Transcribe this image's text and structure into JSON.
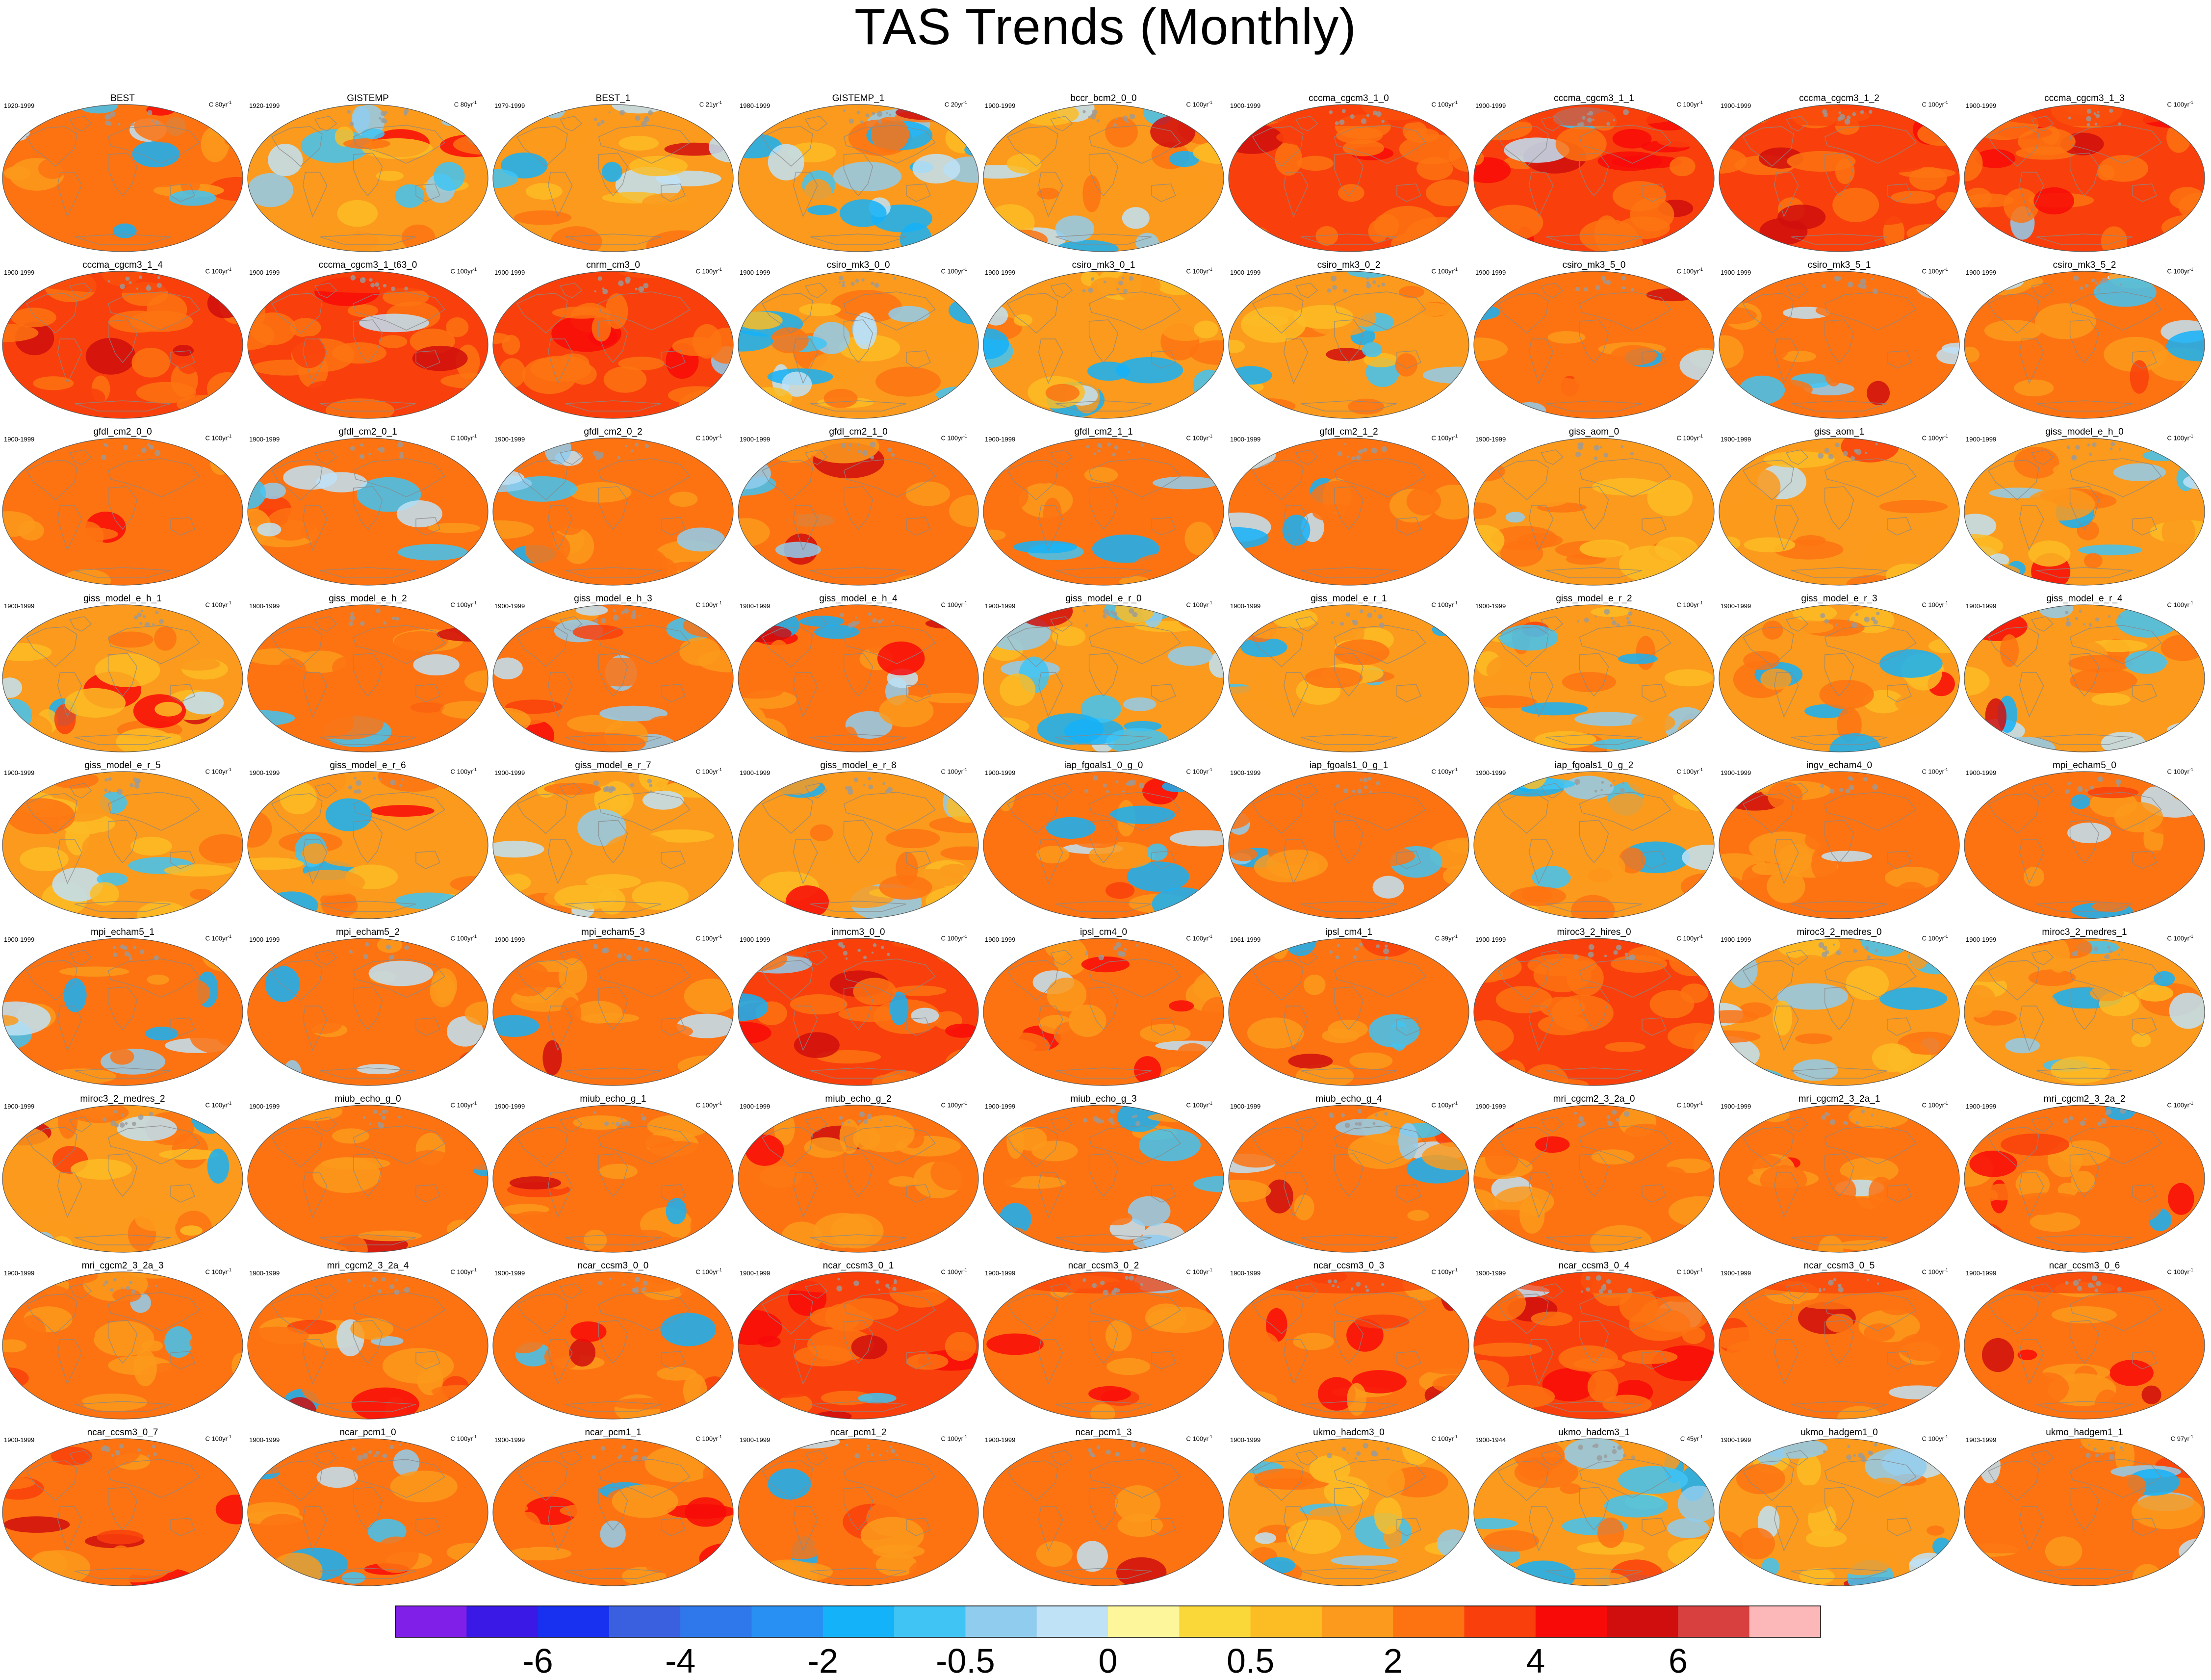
{
  "title": "TAS Trends (Monthly)",
  "colors": {
    "bins": [
      "#7f1fe8",
      "#3a18e6",
      "#1830f0",
      "#3a60e0",
      "#2f78ec",
      "#2890f2",
      "#14b2f8",
      "#40c4f4",
      "#90ccee",
      "#bfe2f6",
      "#fef69a",
      "#fbd83a",
      "#fcbc24",
      "#fb9a1c",
      "#fd7312",
      "#f9400c",
      "#f80a08",
      "#d00e0e",
      "#d84040",
      "#fcb8b8"
    ],
    "land": "#c8a042",
    "grid_land_line": "#888888"
  },
  "chart_data": {
    "type": "heatmap",
    "title": "TAS Trends (Monthly)",
    "colorbar": {
      "tick_labels": [
        "-6",
        "-4",
        "-2",
        "-0.5",
        "0",
        "0.5",
        "2",
        "4",
        "6"
      ],
      "tick_bin_boundaries": [
        2,
        4,
        6,
        8,
        10,
        12,
        14,
        16,
        18
      ],
      "n_bins": 20
    },
    "panels": [
      {
        "name": "BEST",
        "period": "1920-1999",
        "units": "C 80yr",
        "cold": 0.3,
        "warm": 0.05,
        "base": 0.5
      },
      {
        "name": "GISTEMP",
        "period": "1920-1999",
        "units": "C 80yr",
        "cold": 0.3,
        "warm": 0.05,
        "base": 0.48
      },
      {
        "name": "BEST_1",
        "period": "1979-1999",
        "units": "C 21yr",
        "cold": 0.45,
        "warm": 0.1,
        "base": 0.42
      },
      {
        "name": "GISTEMP_1",
        "period": "1980-1999",
        "units": "C 20yr",
        "cold": 0.55,
        "warm": 0.05,
        "base": 0.38
      },
      {
        "name": "bccr_bcm2_0_0",
        "period": "1900-1999",
        "units": "C 100yr",
        "cold": 0.35,
        "warm": 0.05,
        "base": 0.45
      },
      {
        "name": "cccma_cgcm3_1_0",
        "period": "1900-1999",
        "units": "C 100yr",
        "cold": 0.05,
        "warm": 0.4,
        "base": 0.72
      },
      {
        "name": "cccma_cgcm3_1_1",
        "period": "1900-1999",
        "units": "C 100yr",
        "cold": 0.05,
        "warm": 0.4,
        "base": 0.72
      },
      {
        "name": "cccma_cgcm3_1_2",
        "period": "1900-1999",
        "units": "C 100yr",
        "cold": 0.05,
        "warm": 0.3,
        "base": 0.7
      },
      {
        "name": "cccma_cgcm3_1_3",
        "period": "1900-1999",
        "units": "C 100yr",
        "cold": 0.05,
        "warm": 0.3,
        "base": 0.7
      },
      {
        "name": "cccma_cgcm3_1_4",
        "period": "1900-1999",
        "units": "C 100yr",
        "cold": 0.02,
        "warm": 0.3,
        "base": 0.7
      },
      {
        "name": "cccma_cgcm3_1_t63_0",
        "period": "1900-1999",
        "units": "C 100yr",
        "cold": 0.02,
        "warm": 0.3,
        "base": 0.7
      },
      {
        "name": "cnrm_cm3_0",
        "period": "1900-1999",
        "units": "C 100yr",
        "cold": 0.02,
        "warm": 0.3,
        "base": 0.7
      },
      {
        "name": "csiro_mk3_0_0",
        "period": "1900-1999",
        "units": "C 100yr",
        "cold": 0.4,
        "warm": 0.02,
        "base": 0.4
      },
      {
        "name": "csiro_mk3_0_1",
        "period": "1900-1999",
        "units": "C 100yr",
        "cold": 0.35,
        "warm": 0.02,
        "base": 0.42
      },
      {
        "name": "csiro_mk3_0_2",
        "period": "1900-1999",
        "units": "C 100yr",
        "cold": 0.25,
        "warm": 0.02,
        "base": 0.45
      },
      {
        "name": "csiro_mk3_5_0",
        "period": "1900-1999",
        "units": "C 100yr",
        "cold": 0.2,
        "warm": 0.05,
        "base": 0.55
      },
      {
        "name": "csiro_mk3_5_1",
        "period": "1900-1999",
        "units": "C 100yr",
        "cold": 0.2,
        "warm": 0.05,
        "base": 0.55
      },
      {
        "name": "csiro_mk3_5_2",
        "period": "1900-1999",
        "units": "C 100yr",
        "cold": 0.2,
        "warm": 0.05,
        "base": 0.55
      },
      {
        "name": "gfdl_cm2_0_0",
        "period": "1900-1999",
        "units": "C 100yr",
        "cold": 0.05,
        "warm": 0.05,
        "base": 0.55
      },
      {
        "name": "gfdl_cm2_0_1",
        "period": "1900-1999",
        "units": "C 100yr",
        "cold": 0.3,
        "warm": 0.05,
        "base": 0.5
      },
      {
        "name": "gfdl_cm2_0_2",
        "period": "1900-1999",
        "units": "C 100yr",
        "cold": 0.15,
        "warm": 0.05,
        "base": 0.52
      },
      {
        "name": "gfdl_cm2_1_0",
        "period": "1900-1999",
        "units": "C 100yr",
        "cold": 0.1,
        "warm": 0.05,
        "base": 0.55
      },
      {
        "name": "gfdl_cm2_1_1",
        "period": "1900-1999",
        "units": "C 100yr",
        "cold": 0.15,
        "warm": 0.05,
        "base": 0.52
      },
      {
        "name": "gfdl_cm2_1_2",
        "period": "1900-1999",
        "units": "C 100yr",
        "cold": 0.2,
        "warm": 0.05,
        "base": 0.52
      },
      {
        "name": "giss_aom_0",
        "period": "1900-1999",
        "units": "C 100yr",
        "cold": 0.05,
        "warm": 0.05,
        "base": 0.48
      },
      {
        "name": "giss_aom_1",
        "period": "1900-1999",
        "units": "C 100yr",
        "cold": 0.05,
        "warm": 0.05,
        "base": 0.48
      },
      {
        "name": "giss_model_e_h_0",
        "period": "1900-1999",
        "units": "C 100yr",
        "cold": 0.25,
        "warm": 0.1,
        "base": 0.48
      },
      {
        "name": "giss_model_e_h_1",
        "period": "1900-1999",
        "units": "C 100yr",
        "cold": 0.3,
        "warm": 0.1,
        "base": 0.48
      },
      {
        "name": "giss_model_e_h_2",
        "period": "1900-1999",
        "units": "C 100yr",
        "cold": 0.3,
        "warm": 0.1,
        "base": 0.5
      },
      {
        "name": "giss_model_e_h_3",
        "period": "1900-1999",
        "units": "C 100yr",
        "cold": 0.25,
        "warm": 0.1,
        "base": 0.52
      },
      {
        "name": "giss_model_e_h_4",
        "period": "1900-1999",
        "units": "C 100yr",
        "cold": 0.25,
        "warm": 0.15,
        "base": 0.52
      },
      {
        "name": "giss_model_e_r_0",
        "period": "1900-1999",
        "units": "C 100yr",
        "cold": 0.25,
        "warm": 0.05,
        "base": 0.48
      },
      {
        "name": "giss_model_e_r_1",
        "period": "1900-1999",
        "units": "C 100yr",
        "cold": 0.1,
        "warm": 0.05,
        "base": 0.48
      },
      {
        "name": "giss_model_e_r_2",
        "period": "1900-1999",
        "units": "C 100yr",
        "cold": 0.3,
        "warm": 0.05,
        "base": 0.48
      },
      {
        "name": "giss_model_e_r_3",
        "period": "1900-1999",
        "units": "C 100yr",
        "cold": 0.2,
        "warm": 0.05,
        "base": 0.48
      },
      {
        "name": "giss_model_e_r_4",
        "period": "1900-1999",
        "units": "C 100yr",
        "cold": 0.2,
        "warm": 0.05,
        "base": 0.48
      },
      {
        "name": "giss_model_e_r_5",
        "period": "1900-1999",
        "units": "C 100yr",
        "cold": 0.3,
        "warm": 0.05,
        "base": 0.48
      },
      {
        "name": "giss_model_e_r_6",
        "period": "1900-1999",
        "units": "C 100yr",
        "cold": 0.15,
        "warm": 0.05,
        "base": 0.48
      },
      {
        "name": "giss_model_e_r_7",
        "period": "1900-1999",
        "units": "C 100yr",
        "cold": 0.2,
        "warm": 0.05,
        "base": 0.48
      },
      {
        "name": "giss_model_e_r_8",
        "period": "1900-1999",
        "units": "C 100yr",
        "cold": 0.25,
        "warm": 0.05,
        "base": 0.48
      },
      {
        "name": "iap_fgoals1_0_g_0",
        "period": "1900-1999",
        "units": "C 100yr",
        "cold": 0.35,
        "warm": 0.05,
        "base": 0.5
      },
      {
        "name": "iap_fgoals1_0_g_1",
        "period": "1900-1999",
        "units": "C 100yr",
        "cold": 0.2,
        "warm": 0.05,
        "base": 0.52
      },
      {
        "name": "iap_fgoals1_0_g_2",
        "period": "1900-1999",
        "units": "C 100yr",
        "cold": 0.45,
        "warm": 0.05,
        "base": 0.45
      },
      {
        "name": "ingv_echam4_0",
        "period": "1900-1999",
        "units": "C 100yr",
        "cold": 0.05,
        "warm": 0.1,
        "base": 0.6
      },
      {
        "name": "mpi_echam5_0",
        "period": "1900-1999",
        "units": "C 100yr",
        "cold": 0.2,
        "warm": 0.05,
        "base": 0.52
      },
      {
        "name": "mpi_echam5_1",
        "period": "1900-1999",
        "units": "C 100yr",
        "cold": 0.25,
        "warm": 0.05,
        "base": 0.5
      },
      {
        "name": "mpi_echam5_2",
        "period": "1900-1999",
        "units": "C 100yr",
        "cold": 0.3,
        "warm": 0.05,
        "base": 0.5
      },
      {
        "name": "mpi_echam5_3",
        "period": "1900-1999",
        "units": "C 100yr",
        "cold": 0.2,
        "warm": 0.05,
        "base": 0.5
      },
      {
        "name": "inmcm3_0_0",
        "period": "1900-1999",
        "units": "C 100yr",
        "cold": 0.1,
        "warm": 0.25,
        "base": 0.65
      },
      {
        "name": "ipsl_cm4_0",
        "period": "1900-1999",
        "units": "C 100yr",
        "cold": 0.05,
        "warm": 0.2,
        "base": 0.62
      },
      {
        "name": "ipsl_cm4_1",
        "period": "1961-1999",
        "units": "C 39yr",
        "cold": 0.2,
        "warm": 0.15,
        "base": 0.58
      },
      {
        "name": "miroc3_2_hires_0",
        "period": "1900-1999",
        "units": "C 100yr",
        "cold": 0.05,
        "warm": 0.15,
        "base": 0.65
      },
      {
        "name": "miroc3_2_medres_0",
        "period": "1900-1999",
        "units": "C 100yr",
        "cold": 0.25,
        "warm": 0.05,
        "base": 0.48
      },
      {
        "name": "miroc3_2_medres_1",
        "period": "1900-1999",
        "units": "C 100yr",
        "cold": 0.3,
        "warm": 0.05,
        "base": 0.46
      },
      {
        "name": "miroc3_2_medres_2",
        "period": "1900-1999",
        "units": "C 100yr",
        "cold": 0.25,
        "warm": 0.05,
        "base": 0.46
      },
      {
        "name": "miub_echo_g_0",
        "period": "1900-1999",
        "units": "C 100yr",
        "cold": 0.05,
        "warm": 0.1,
        "base": 0.58
      },
      {
        "name": "miub_echo_g_1",
        "period": "1900-1999",
        "units": "C 100yr",
        "cold": 0.05,
        "warm": 0.1,
        "base": 0.58
      },
      {
        "name": "miub_echo_g_2",
        "period": "1900-1999",
        "units": "C 100yr",
        "cold": 0.05,
        "warm": 0.1,
        "base": 0.58
      },
      {
        "name": "miub_echo_g_3",
        "period": "1900-1999",
        "units": "C 100yr",
        "cold": 0.25,
        "warm": 0.05,
        "base": 0.55
      },
      {
        "name": "miub_echo_g_4",
        "period": "1900-1999",
        "units": "C 100yr",
        "cold": 0.2,
        "warm": 0.2,
        "base": 0.62
      },
      {
        "name": "mri_cgcm2_3_2a_0",
        "period": "1900-1999",
        "units": "C 100yr",
        "cold": 0.05,
        "warm": 0.15,
        "base": 0.6
      },
      {
        "name": "mri_cgcm2_3_2a_1",
        "period": "1900-1999",
        "units": "C 100yr",
        "cold": 0.05,
        "warm": 0.1,
        "base": 0.58
      },
      {
        "name": "mri_cgcm2_3_2a_2",
        "period": "1900-1999",
        "units": "C 100yr",
        "cold": 0.1,
        "warm": 0.2,
        "base": 0.62
      },
      {
        "name": "mri_cgcm2_3_2a_3",
        "period": "1900-1999",
        "units": "C 100yr",
        "cold": 0.05,
        "warm": 0.1,
        "base": 0.56
      },
      {
        "name": "mri_cgcm2_3_2a_4",
        "period": "1900-1999",
        "units": "C 100yr",
        "cold": 0.1,
        "warm": 0.1,
        "base": 0.56
      },
      {
        "name": "ncar_ccsm3_0_0",
        "period": "1900-1999",
        "units": "C 100yr",
        "cold": 0.05,
        "warm": 0.15,
        "base": 0.62
      },
      {
        "name": "ncar_ccsm3_0_1",
        "period": "1900-1999",
        "units": "C 100yr",
        "cold": 0.05,
        "warm": 0.45,
        "base": 0.66
      },
      {
        "name": "ncar_ccsm3_0_2",
        "period": "1900-1999",
        "units": "C 100yr",
        "cold": 0.05,
        "warm": 0.35,
        "base": 0.64
      },
      {
        "name": "ncar_ccsm3_0_3",
        "period": "1900-1999",
        "units": "C 100yr",
        "cold": 0.05,
        "warm": 0.4,
        "base": 0.64
      },
      {
        "name": "ncar_ccsm3_0_4",
        "period": "1900-1999",
        "units": "C 100yr",
        "cold": 0.05,
        "warm": 0.45,
        "base": 0.66
      },
      {
        "name": "ncar_ccsm3_0_5",
        "period": "1900-1999",
        "units": "C 100yr",
        "cold": 0.05,
        "warm": 0.25,
        "base": 0.62
      },
      {
        "name": "ncar_ccsm3_0_6",
        "period": "1900-1999",
        "units": "C 100yr",
        "cold": 0.05,
        "warm": 0.25,
        "base": 0.62
      },
      {
        "name": "ncar_ccsm3_0_7",
        "period": "1900-1999",
        "units": "C 100yr",
        "cold": 0.05,
        "warm": 0.2,
        "base": 0.62
      },
      {
        "name": "ncar_pcm1_0",
        "period": "1900-1999",
        "units": "C 100yr",
        "cold": 0.15,
        "warm": 0.1,
        "base": 0.58
      },
      {
        "name": "ncar_pcm1_1",
        "period": "1900-1999",
        "units": "C 100yr",
        "cold": 0.15,
        "warm": 0.1,
        "base": 0.58
      },
      {
        "name": "ncar_pcm1_2",
        "period": "1900-1999",
        "units": "C 100yr",
        "cold": 0.2,
        "warm": 0.1,
        "base": 0.58
      },
      {
        "name": "ncar_pcm1_3",
        "period": "1900-1999",
        "units": "C 100yr",
        "cold": 0.1,
        "warm": 0.1,
        "base": 0.58
      },
      {
        "name": "ukmo_hadcm3_0",
        "period": "1900-1999",
        "units": "C 100yr",
        "cold": 0.3,
        "warm": 0.05,
        "base": 0.48
      },
      {
        "name": "ukmo_hadcm3_1",
        "period": "1900-1944",
        "units": "C 45yr",
        "cold": 0.5,
        "warm": 0.05,
        "base": 0.4
      },
      {
        "name": "ukmo_hadgem1_0",
        "period": "1900-1999",
        "units": "C 100yr",
        "cold": 0.35,
        "warm": 0.05,
        "base": 0.48
      },
      {
        "name": "ukmo_hadgem1_1",
        "period": "1903-1999",
        "units": "C 97yr",
        "cold": 0.3,
        "warm": 0.05,
        "base": 0.5
      }
    ]
  }
}
